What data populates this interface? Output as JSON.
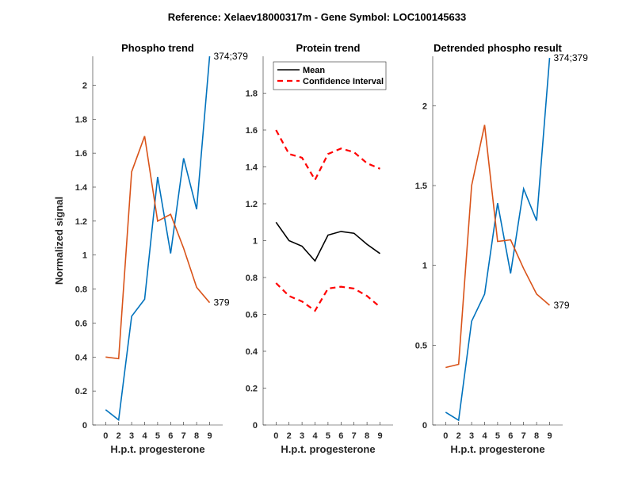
{
  "figure": {
    "title": "Reference:  Xelaev18000317m - Gene Symbol:  LOC100145633"
  },
  "chart_data": [
    {
      "type": "line",
      "title": "Phospho trend",
      "xlabel": "H.p.t. progesterone",
      "ylabel": "Normalized signal",
      "categories": [
        "0",
        "2",
        "3",
        "4",
        "5",
        "6",
        "7",
        "8",
        "9"
      ],
      "yticks": [
        0,
        0.2,
        0.4,
        0.6,
        0.8,
        1,
        1.2,
        1.4,
        1.6,
        1.8,
        2
      ],
      "ytick_labels": [
        "0",
        "0.2",
        "0.4",
        "0.6",
        "0.8",
        "1",
        "1.2",
        "1.4",
        "1.6",
        "1.8",
        "2"
      ],
      "ylim": [
        0,
        2.17
      ],
      "grid": false,
      "series": [
        {
          "name": "374;379",
          "color": "#0072bd",
          "dash": false,
          "end_label": "374;379",
          "values": [
            0.09,
            0.03,
            0.64,
            0.74,
            1.46,
            1.01,
            1.57,
            1.27,
            2.17
          ]
        },
        {
          "name": "379",
          "color": "#d95319",
          "dash": false,
          "end_label": "379",
          "values": [
            0.4,
            0.39,
            1.49,
            1.7,
            1.2,
            1.24,
            1.04,
            0.81,
            0.72
          ]
        }
      ]
    },
    {
      "type": "line",
      "title": "Protein trend",
      "xlabel": "H.p.t. progesterone",
      "ylabel": "",
      "categories": [
        "0",
        "2",
        "3",
        "4",
        "5",
        "6",
        "7",
        "8",
        "9"
      ],
      "yticks": [
        0,
        0.2,
        0.4,
        0.6,
        0.8,
        1,
        1.2,
        1.4,
        1.6,
        1.8
      ],
      "ytick_labels": [
        "0",
        "0.2",
        "0.4",
        "0.6",
        "0.8",
        "1",
        "1.2",
        "1.4",
        "1.6",
        "1.8"
      ],
      "ylim": [
        0,
        2.0
      ],
      "grid": false,
      "legend": {
        "placement": "top-left",
        "entries": [
          "Mean",
          "Confidence Interval"
        ]
      },
      "series": [
        {
          "name": "Mean",
          "color": "#000000",
          "dash": false,
          "values": [
            1.1,
            1.0,
            0.97,
            0.89,
            1.03,
            1.05,
            1.04,
            0.98,
            0.93
          ]
        },
        {
          "name": "Confidence Interval",
          "color": "#ff0000",
          "dash": true,
          "values": [
            1.6,
            1.47,
            1.45,
            1.33,
            1.47,
            1.5,
            1.48,
            1.42,
            1.39
          ]
        },
        {
          "name": "Confidence Interval (lower)",
          "color": "#ff0000",
          "dash": true,
          "values": [
            0.77,
            0.7,
            0.67,
            0.62,
            0.74,
            0.75,
            0.74,
            0.7,
            0.64
          ]
        }
      ]
    },
    {
      "type": "line",
      "title": "Detrended phospho result",
      "xlabel": "H.p.t. progesterone",
      "ylabel": "",
      "categories": [
        "0",
        "2",
        "3",
        "4",
        "5",
        "6",
        "7",
        "8",
        "9"
      ],
      "yticks": [
        0,
        0.5,
        1,
        1.5,
        2
      ],
      "ytick_labels": [
        "0",
        "0.5",
        "1",
        "1.5",
        "2"
      ],
      "ylim": [
        0,
        2.31
      ],
      "grid": false,
      "series": [
        {
          "name": "374;379",
          "color": "#0072bd",
          "dash": false,
          "end_label": "374;379",
          "values": [
            0.08,
            0.03,
            0.65,
            0.82,
            1.39,
            0.95,
            1.48,
            1.28,
            2.3
          ]
        },
        {
          "name": "379",
          "color": "#d95319",
          "dash": false,
          "end_label": "379",
          "values": [
            0.36,
            0.38,
            1.5,
            1.88,
            1.15,
            1.16,
            0.98,
            0.82,
            0.75
          ]
        }
      ]
    }
  ]
}
